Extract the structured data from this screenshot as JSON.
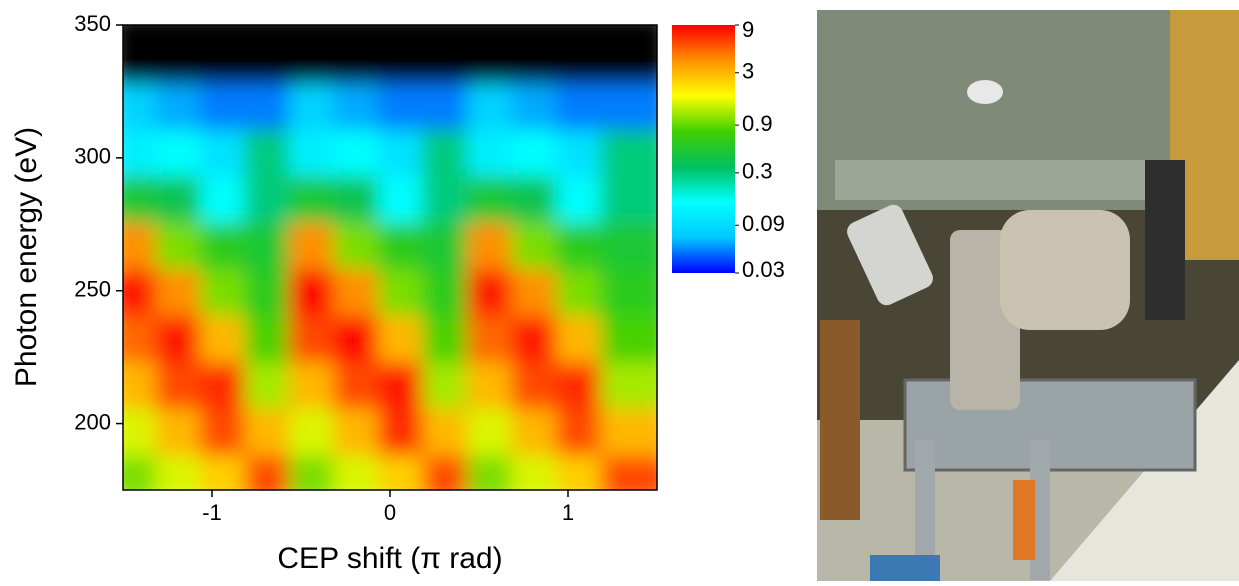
{
  "chart_data": {
    "type": "heatmap",
    "x_label": "CEP shift (π rad)",
    "y_label": "Photon energy (eV)",
    "xbins": [
      -1.5,
      -1.25,
      -1,
      -0.75,
      -0.5,
      -0.25,
      0,
      0.25,
      0.5,
      0.75,
      1,
      1.25,
      1.5
    ],
    "ybins": [
      175,
      192.5,
      210,
      227.5,
      245,
      262.5,
      280,
      297.5,
      315,
      332.5,
      350
    ],
    "z": [
      [
        1,
        1.5,
        2.5,
        6,
        1,
        1.5,
        2.5,
        6,
        1,
        1.5,
        2.5,
        6
      ],
      [
        1.5,
        3,
        6,
        3,
        1.5,
        3,
        7,
        3,
        1.5,
        3,
        6,
        3
      ],
      [
        3,
        6,
        7,
        1.2,
        3,
        6,
        8,
        1.2,
        3,
        6,
        7,
        1.2
      ],
      [
        5,
        8,
        3,
        0.8,
        6,
        9,
        3,
        0.8,
        5,
        8,
        3,
        0.8
      ],
      [
        8,
        4,
        1,
        0.6,
        9,
        4,
        1,
        0.6,
        8,
        4,
        1,
        0.6
      ],
      [
        4,
        1,
        0.6,
        0.5,
        4,
        1,
        0.6,
        0.5,
        4,
        1,
        0.6,
        0.5
      ],
      [
        0.5,
        0.4,
        0.15,
        0.3,
        0.5,
        0.4,
        0.15,
        0.3,
        0.5,
        0.4,
        0.15,
        0.3
      ],
      [
        0.12,
        0.15,
        0.1,
        0.3,
        0.12,
        0.15,
        0.1,
        0.3,
        0.12,
        0.15,
        0.1,
        0.3
      ],
      [
        0.08,
        0.06,
        0.05,
        0.05,
        0.08,
        0.06,
        0.05,
        0.05,
        0.08,
        0.06,
        0.05,
        0.05
      ],
      [
        0.02,
        0.02,
        0.02,
        0.02,
        0.02,
        0.02,
        0.02,
        0.02,
        0.02,
        0.02,
        0.02,
        0.02
      ]
    ],
    "xlim": [
      -1.5,
      1.5
    ],
    "xticks": [
      -1,
      0,
      1
    ],
    "ylim": [
      175,
      350
    ],
    "yticks": [
      200,
      250,
      300,
      350
    ],
    "color_scale": "log",
    "clim": [
      0.03,
      9
    ],
    "cticks": [
      9,
      3,
      0.9,
      0.3,
      0.09,
      0.03
    ],
    "colormap": [
      "#0000ff",
      "#00c8ff",
      "#00ffff",
      "#00c060",
      "#40d000",
      "#ffff00",
      "#ff9000",
      "#ff0000"
    ],
    "under_color": "#000000"
  }
}
